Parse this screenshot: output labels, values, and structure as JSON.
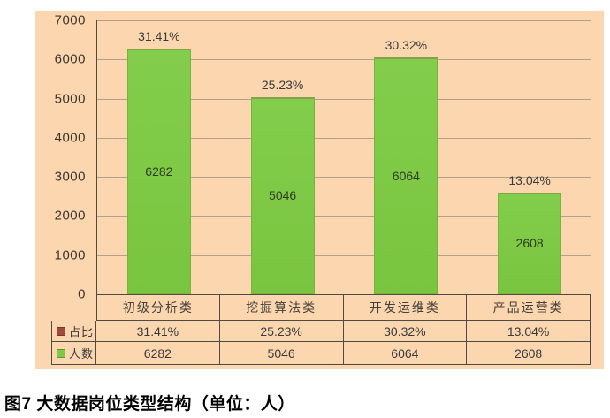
{
  "caption": "图7 大数据岗位类型结构（单位：人）",
  "colors": {
    "chart_background": "#fbd6ae",
    "bar_green": "#7dc843",
    "legend_ratio_red": "#9e4a3c",
    "gridline": "#b3a089",
    "border": "#4f4a43",
    "text": "#3a3a3a"
  },
  "chart_data": {
    "type": "bar",
    "title": "图7 大数据岗位类型结构（单位：人）",
    "categories": [
      "初级分析类",
      "挖掘算法类",
      "开发运维类",
      "产品运营类"
    ],
    "series": [
      {
        "name": "占比",
        "values": [
          "31.41%",
          "25.23%",
          "30.32%",
          "13.04%"
        ],
        "color": "#9e4a3c"
      },
      {
        "name": "人数",
        "values": [
          6282,
          5046,
          6064,
          2608
        ],
        "color": "#7ec94a"
      }
    ],
    "xlabel": "",
    "ylabel": "",
    "ylim": [
      0,
      7000
    ],
    "yticks": [
      0,
      1000,
      2000,
      3000,
      4000,
      5000,
      6000,
      7000
    ],
    "grid": true,
    "legend_position": "table-left",
    "bar_labels_inside": "人数",
    "bar_labels_above": "占比"
  }
}
